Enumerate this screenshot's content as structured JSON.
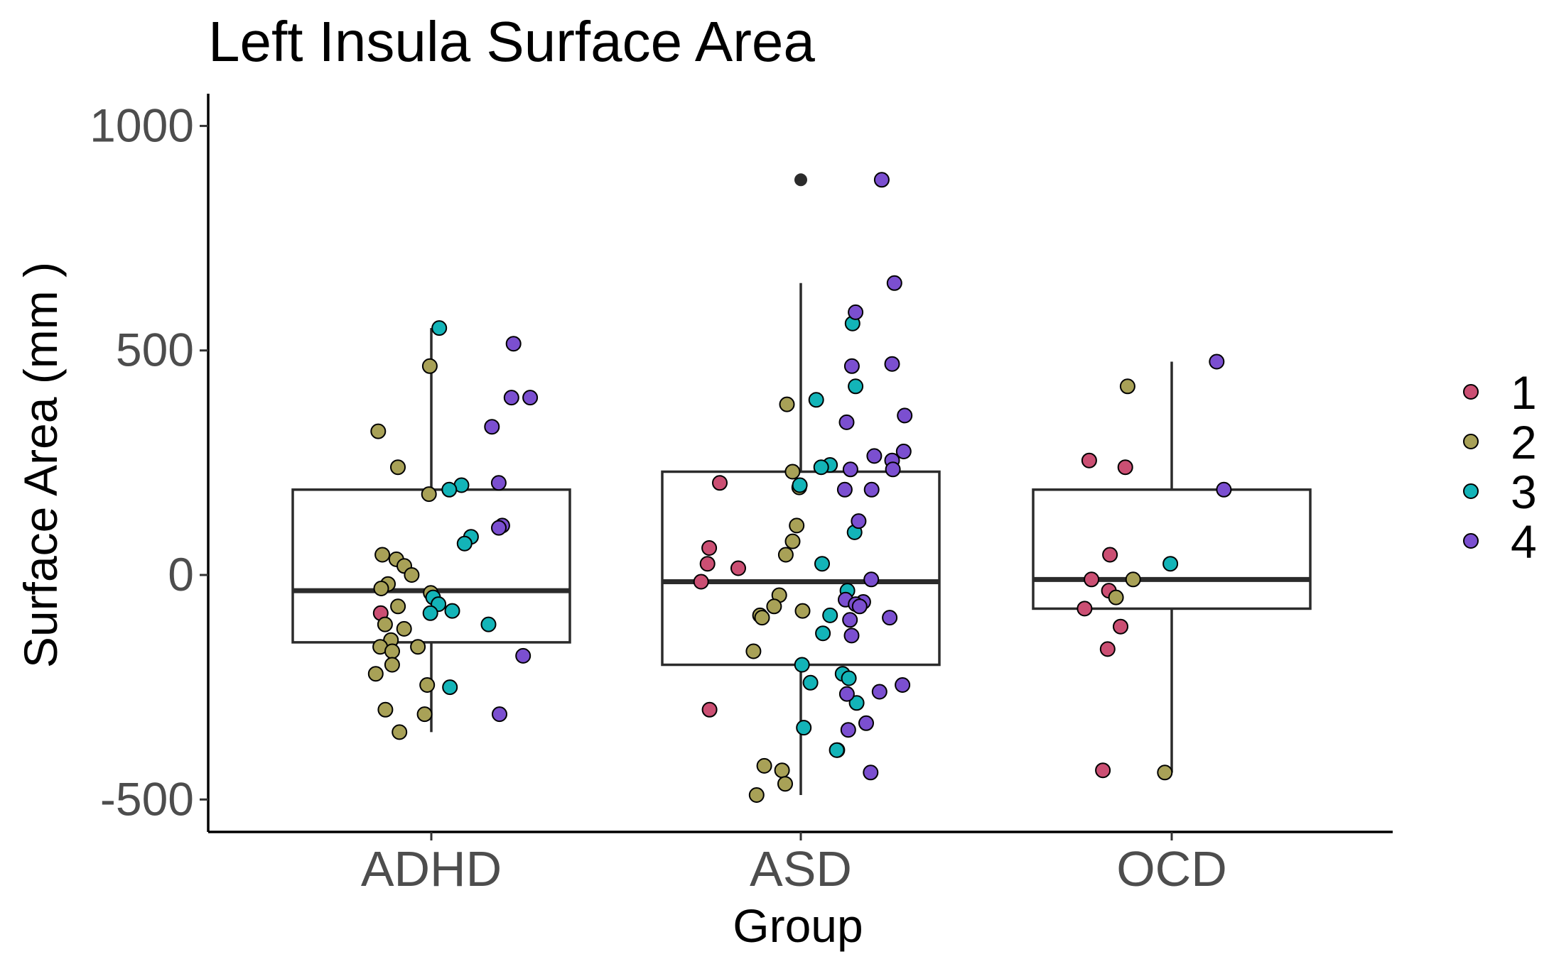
{
  "chart_data": {
    "type": "boxplot",
    "title": "Left Insula Surface Area",
    "xlabel": "Group",
    "ylabel": "Surface Area (mm )",
    "ylim": [
      -580,
      1080
    ],
    "yticks": [
      -500,
      0,
      500,
      1000
    ],
    "categories": [
      "ADHD",
      "ASD",
      "OCD"
    ],
    "boxes": [
      {
        "group": "ADHD",
        "whisker_low": -350,
        "q1": -150,
        "median": -35,
        "q3": 190,
        "whisker_high": 550,
        "outliers": []
      },
      {
        "group": "ASD",
        "whisker_low": -490,
        "q1": -200,
        "median": -15,
        "q3": 230,
        "whisker_high": 650,
        "outliers": [
          880
        ]
      },
      {
        "group": "OCD",
        "whisker_low": -440,
        "q1": -75,
        "median": -10,
        "q3": 190,
        "whisker_high": 475,
        "outliers": []
      }
    ],
    "legend": {
      "placement": "right",
      "entries": [
        {
          "label": "1",
          "color": "#CB4F73"
        },
        {
          "label": "2",
          "color": "#A8A157"
        },
        {
          "label": "3",
          "color": "#13B4B8"
        },
        {
          "label": "4",
          "color": "#7B4FD0"
        }
      ]
    },
    "points": {
      "ADHD": {
        "1": [
          -85
        ],
        "2": [
          465,
          320,
          240,
          180,
          45,
          35,
          20,
          0,
          -20,
          -30,
          -40,
          -70,
          -110,
          -120,
          -145,
          -160,
          -160,
          -170,
          -200,
          -220,
          -245,
          -300,
          -310,
          -350
        ],
        "3": [
          550,
          200,
          190,
          85,
          70,
          -50,
          -65,
          -80,
          -85,
          -110,
          -250
        ],
        "4": [
          515,
          395,
          395,
          330,
          205,
          110,
          105,
          -180,
          -310
        ]
      },
      "ASD": {
        "1": [
          205,
          60,
          25,
          15,
          -15,
          -300
        ],
        "2": [
          380,
          230,
          195,
          110,
          75,
          45,
          -45,
          -70,
          -80,
          -90,
          -95,
          -170,
          -425,
          -435,
          -465,
          -490
        ],
        "3": [
          560,
          420,
          390,
          245,
          240,
          200,
          95,
          25,
          -35,
          -90,
          -130,
          -200,
          -220,
          -230,
          -240,
          -285,
          -340,
          -390,
          -390
        ],
        "4": [
          880,
          650,
          585,
          470,
          465,
          355,
          340,
          275,
          265,
          255,
          235,
          235,
          190,
          190,
          120,
          -10,
          -55,
          -60,
          -65,
          -70,
          -95,
          -100,
          -135,
          -245,
          -260,
          -265,
          -330,
          -345,
          -440
        ]
      },
      "OCD": {
        "1": [
          255,
          240,
          45,
          -10,
          -35,
          -75,
          -115,
          -165,
          -435
        ],
        "2": [
          420,
          -10,
          -50,
          -440
        ],
        "3": [
          25
        ],
        "4": [
          475,
          190
        ]
      }
    }
  }
}
